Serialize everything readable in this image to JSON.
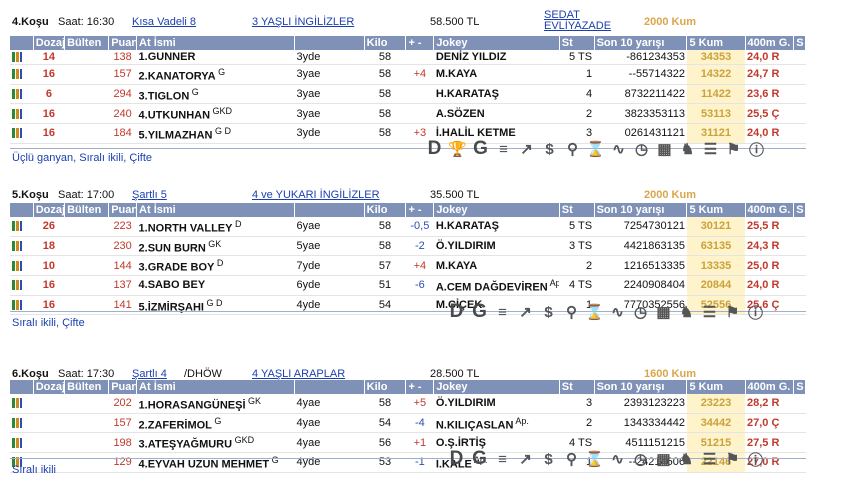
{
  "races": [
    {
      "kosu": "4.Koşu",
      "saat": "Saat: 16:30",
      "cond": "Kısa Vadeli  8",
      "cat": "3 YAŞLI İNGİLİZLER",
      "prize": "58.500 TL",
      "owner": "SEDAT EVLİYAZADE",
      "track": "2000 Kum",
      "footer": "Üçlü ganyan, Sıralı ikili, Çifte",
      "horses": [
        {
          "doz": "14",
          "puan": "138",
          "name": "1.GUNNER",
          "sup": "",
          "age": "3yde",
          "kilo": "58",
          "pm": "",
          "jockey": "DENİZ YILDIZ",
          "st": "5 TS",
          "son": "-861234353",
          "k5": "34353",
          "k4": "24,0 R"
        },
        {
          "doz": "16",
          "puan": "157",
          "name": "2.KANATORYA",
          "sup": "G",
          "age": "3yae",
          "kilo": "58",
          "pm": "+4",
          "jockey": "M.KAYA",
          "st": "1",
          "son": "--55714322",
          "k5": "14322",
          "k4": "24,7 R"
        },
        {
          "doz": "6",
          "puan": "294",
          "name": "3.TIGLON",
          "sup": "G",
          "age": "3yae",
          "kilo": "58",
          "pm": "",
          "jockey": "H.KARATAŞ",
          "st": "4",
          "son": "8732211422",
          "k5": "11422",
          "k4": "23,6 R"
        },
        {
          "doz": "16",
          "puan": "240",
          "name": "4.UTKUNHAN",
          "sup": "GKD",
          "age": "3yae",
          "kilo": "58",
          "pm": "",
          "jockey": "A.SÖZEN",
          "st": "2",
          "son": "3823353113",
          "k5": "53113",
          "k4": "25,5 Ç"
        },
        {
          "doz": "16",
          "puan": "184",
          "name": "5.YILMAZHAN",
          "sup": "G D",
          "age": "3yde",
          "kilo": "58",
          "pm": "+3",
          "jockey": "İ.HALİL KETME",
          "st": "3",
          "son": "0261431121",
          "k5": "31121",
          "k4": "24,0 R"
        }
      ]
    },
    {
      "kosu": "5.Koşu",
      "saat": "Saat: 17:00",
      "cond": "Şartlı  5",
      "cat": "4 ve YUKARI İNGİLİZLER",
      "prize": "35.500 TL",
      "owner": "",
      "track": "2000 Kum",
      "footer": "Sıralı ikili, Çifte",
      "horses": [
        {
          "doz": "26",
          "puan": "223",
          "name": "1.NORTH VALLEY",
          "sup": "D",
          "age": "6yae",
          "kilo": "58",
          "pm": "-0,5",
          "jockey": "H.KARATAŞ",
          "st": "5 TS",
          "son": "7254730121",
          "k5": "30121",
          "k4": "25,5 R"
        },
        {
          "doz": "18",
          "puan": "230",
          "name": "2.SUN BURN",
          "sup": "GK",
          "age": "5yae",
          "kilo": "58",
          "pm": "-2",
          "jockey": "Ö.YILDIRIM",
          "st": "3 TS",
          "son": "4421863135",
          "k5": "63135",
          "k4": "24,3 R"
        },
        {
          "doz": "10",
          "puan": "144",
          "name": "3.GRADE BOY",
          "sup": "D",
          "age": "7yde",
          "kilo": "57",
          "pm": "+4",
          "jockey": "M.KAYA",
          "st": "2",
          "son": "1216513335",
          "k5": "13335",
          "k4": "25,0 R"
        },
        {
          "doz": "16",
          "puan": "137",
          "name": "4.SABO BEY",
          "sup": "",
          "age": "6yde",
          "kilo": "51",
          "pm": "-6",
          "jockey": "A.CEM DAĞDEVİREN",
          "sup2": "Ap.",
          "st": "4 TS",
          "son": "2240908404",
          "k5": "20844",
          "k4": "24,0 R"
        },
        {
          "doz": "16",
          "puan": "141",
          "name": "5.İZMİRŞAHI",
          "sup": "G D",
          "age": "4yde",
          "kilo": "54",
          "pm": "",
          "jockey": "M.ÇİÇEK",
          "st": "1",
          "son": "7770352556",
          "k5": "52556",
          "k4": "25,6 Ç"
        }
      ]
    },
    {
      "kosu": "6.Koşu",
      "saat": "Saat: 17:30",
      "cond": "Şartlı  4",
      "cond_extra": "/DHÖW",
      "cat": "4 YAŞLI ARAPLAR",
      "prize": "28.500 TL",
      "owner": "",
      "track": "1600 Kum",
      "footer": "Sıralı ikili",
      "horses": [
        {
          "doz": "",
          "puan": "202",
          "name": "1.HORASANGÜNEŞİ",
          "sup": "GK",
          "age": "4yae",
          "kilo": "58",
          "pm": "+5",
          "jockey": "Ö.YILDIRIM",
          "st": "3",
          "son": "2393123223",
          "k5": "23223",
          "k4": "28,2 R"
        },
        {
          "doz": "",
          "puan": "157",
          "name": "2.ZAFERİMOL",
          "sup": "G",
          "age": "4yae",
          "kilo": "54",
          "pm": "-4",
          "jockey": "N.KILIÇASLAN",
          "sup2": "Ap.",
          "st": "2",
          "son": "1343334442",
          "k5": "34442",
          "k4": "27,0 Ç"
        },
        {
          "doz": "",
          "puan": "198",
          "name": "3.ATEŞYAĞMURU",
          "sup": "GKD",
          "age": "4yae",
          "kilo": "56",
          "pm": "+1",
          "jockey": "O.Ş.İRTİŞ",
          "st": "4 TS",
          "son": "4511151215",
          "k5": "51215",
          "k4": "27,5 R"
        },
        {
          "doz": "",
          "puan": "129",
          "name": "4.EYVAH UZUN MEHMET",
          "sup": "G",
          "age": "4yde",
          "kilo": "53",
          "pm": "-1",
          "jockey": "İ.KALE",
          "sup2": "Ap.",
          "st": "1",
          "son": "--24214606",
          "k5": "22146",
          "k4": "27,0 R"
        }
      ]
    }
  ],
  "columns": {
    "doz": "Dozaj",
    "bulten": "Bülten",
    "puan": "Puan",
    "name": "At İsmi",
    "kilo": "Kilo",
    "pm": "+ -",
    "jockey": "Jokey",
    "st": "St",
    "son": "Son 10 yarışı",
    "k5": "5 Kum",
    "k4": "400m G.",
    "s": "S"
  },
  "tools": [
    "D-icon",
    "trophy-icon",
    "G-icon",
    "form-icon",
    "trend-icon",
    "dollar-icon",
    "binoculars-icon",
    "hourglass-icon",
    "chart-icon",
    "stopwatch-icon",
    "calculator-icon",
    "horse-icon",
    "people-icon",
    "flag-icon",
    "info-icon"
  ]
}
